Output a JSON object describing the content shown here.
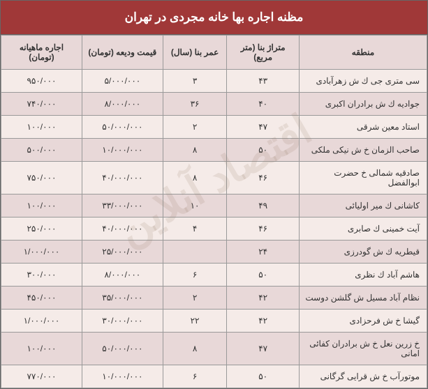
{
  "title": "مظنه اجاره بها خانه مجردی در تهران",
  "watermark": "اقتصاد آنلاین",
  "columns": [
    "منطقه",
    "متراژ بنا (متر مربع)",
    "عمر بنا (سال)",
    "قیمت ودیعه (تومان)",
    "اجاره ماهیانه (تومان)"
  ],
  "rows": [
    [
      "سی متری جی ك ش زهرآبادی",
      "۴۳",
      "۳",
      "۵/۰۰۰/۰۰۰",
      "۹۵۰/۰۰۰"
    ],
    [
      "جوادیه ك ش برادران اكبری",
      "۴۰",
      "۳۶",
      "۸/۰۰۰/۰۰۰",
      "۷۴۰/۰۰۰"
    ],
    [
      "استاد معین شرقی",
      "۴۷",
      "۲",
      "۵۰/۰۰۰/۰۰۰",
      "۱۰۰/۰۰۰"
    ],
    [
      "صاحب الزمان خ ش نیکی ملکی",
      "۵۰",
      "۸",
      "۱۰/۰۰۰/۰۰۰",
      "۵۰۰/۰۰۰"
    ],
    [
      "صادقیه شمالی خ حضرت ابوالفضل",
      "۴۶",
      "۸",
      "۴۰/۰۰۰/۰۰۰",
      "۷۵۰/۰۰۰"
    ],
    [
      "کاشانی ك میر اولیائی",
      "۴۹",
      "۱۰",
      "۳۳/۰۰۰/۰۰۰",
      "۱۰۰/۰۰۰"
    ],
    [
      "آیت خمینی ك صابری",
      "۴۶",
      "۴",
      "۴۰/۰۰۰/۰۰۰",
      "۲۵۰/۰۰۰"
    ],
    [
      "قیطریه ك ش گودرزی",
      "۲۴",
      "",
      "۲۵/۰۰۰/۰۰۰",
      "۱/۰۰۰/۰۰۰"
    ],
    [
      "هاشم آباد ك نظری",
      "۵۰",
      "۶",
      "۸/۰۰۰/۰۰۰",
      "۳۰۰/۰۰۰"
    ],
    [
      "نظام آباد مسیل ش گلشن دوست",
      "۴۲",
      "۲",
      "۳۵/۰۰۰/۰۰۰",
      "۴۵۰/۰۰۰"
    ],
    [
      "گیشا خ ش فرحزادی",
      "۴۲",
      "۲۲",
      "۳۰/۰۰۰/۰۰۰",
      "۱/۰۰۰/۰۰۰"
    ],
    [
      "خ زرین نعل خ ش برادران کفائی امانی",
      "۴۷",
      "۸",
      "۵۰/۰۰۰/۰۰۰",
      "۱۰۰/۰۰۰"
    ],
    [
      "موتورآب خ ش قرایی گرگانی",
      "۵۰",
      "۶",
      "۱۰/۰۰۰/۰۰۰",
      "۷۷۰/۰۰۰"
    ]
  ],
  "colors": {
    "header_bg": "#a03838",
    "header_text": "#ffffff",
    "th_bg": "#e8d8d8",
    "row_odd": "#f5ebe8",
    "row_even": "#e8d8d8",
    "border": "#999"
  }
}
